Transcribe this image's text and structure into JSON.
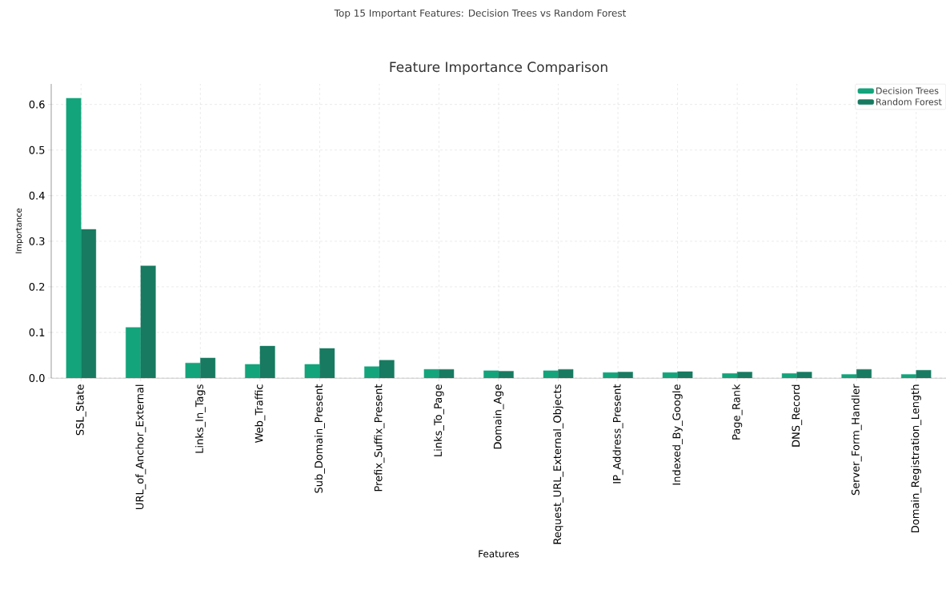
{
  "chart_data": {
    "type": "bar",
    "title": "Feature Importance Comparison",
    "subtitle": "Top 15 Important Features: Decision Trees vs Random Forest",
    "xlabel": "Features",
    "ylabel": "Importance",
    "categories": [
      "SSL_State",
      "URL_of_Anchor_External",
      "Links_In_Tags",
      "Web_Traffic",
      "Sub_Domain_Present",
      "Prefix_Suffix_Present",
      "Links_To_Page",
      "Domain_Age",
      "Request_URL_External_Objects",
      "IP_Address_Present",
      "Indexed_By_Google",
      "Page_Rank",
      "DNS_Record",
      "Server_Form_Handler",
      "Domain_Registration_Length"
    ],
    "series": [
      {
        "name": "Decision Trees",
        "color": "#13a47b",
        "values": [
          0.614,
          0.111,
          0.033,
          0.03,
          0.03,
          0.025,
          0.019,
          0.016,
          0.016,
          0.012,
          0.012,
          0.01,
          0.01,
          0.008,
          0.008
        ]
      },
      {
        "name": "Random Forest",
        "color": "#177a61",
        "values": [
          0.326,
          0.246,
          0.044,
          0.07,
          0.065,
          0.039,
          0.019,
          0.015,
          0.019,
          0.013,
          0.014,
          0.013,
          0.013,
          0.019,
          0.017
        ]
      }
    ],
    "ylim": [
      0,
      0.645
    ],
    "yticks": [
      {
        "value": 0,
        "label": "0.0"
      },
      0.1,
      0.2,
      0.3,
      0.4,
      0.5,
      0.6
    ],
    "grid": true,
    "legend": "top right"
  }
}
